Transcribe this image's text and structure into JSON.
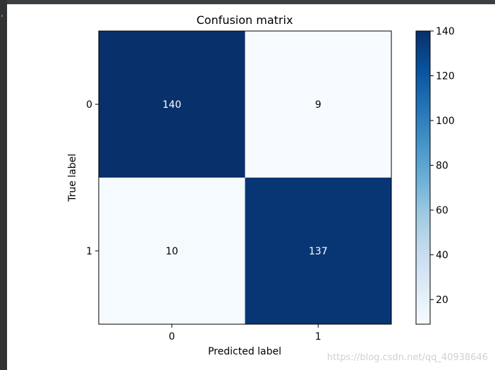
{
  "chart_data": {
    "type": "heatmap",
    "title": "Confusion matrix",
    "xlabel": "Predicted label",
    "ylabel": "True label",
    "x_tick_labels": [
      "0",
      "1"
    ],
    "y_tick_labels": [
      "0",
      "1"
    ],
    "matrix": [
      [
        140,
        9
      ],
      [
        10,
        137
      ]
    ],
    "colormap": "Blues",
    "colorbar": {
      "range": [
        9,
        140
      ],
      "ticks": [
        20,
        40,
        60,
        80,
        100,
        120,
        140
      ],
      "tick_labels": [
        "20",
        "40",
        "60",
        "80",
        "100",
        "120",
        "140"
      ]
    },
    "grid": false,
    "colors": {
      "high": "#08306b",
      "low": "#f7fbff",
      "text_on_dark": "#ffffff",
      "text_on_light": "#000000"
    }
  },
  "watermark": "https://blog.csdn.net/qq_40938646"
}
